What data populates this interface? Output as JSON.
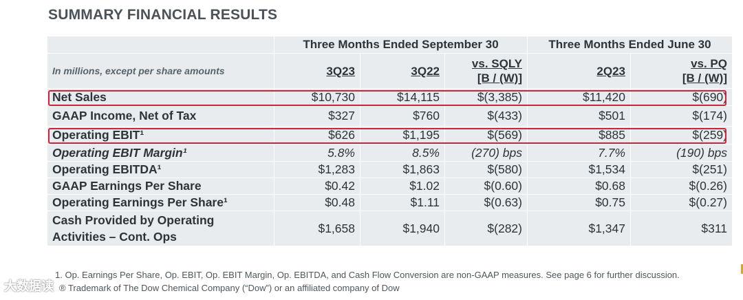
{
  "title": "SUMMARY FINANCIAL RESULTS",
  "groups": {
    "sep": "Three Months Ended September 30",
    "jun": "Three Months Ended June 30"
  },
  "header": {
    "note": "In millions, except per share amounts",
    "c1": "3Q23",
    "c2": "3Q22",
    "c3a": "vs. SQLY",
    "c3b": "[B / (W)]",
    "c4": "2Q23",
    "c5a": "vs. PQ",
    "c5b": "[B / (W)]"
  },
  "rows": [
    {
      "label": "Net Sales",
      "v": [
        "$10,730",
        "$14,115",
        "$(3,385)",
        "$11,420",
        "$(690)"
      ]
    },
    {
      "label": "GAAP Income, Net of Tax",
      "v": [
        "$327",
        "$760",
        "$(433)",
        "$501",
        "$(174)"
      ]
    },
    {
      "label": "Operating EBIT¹",
      "v": [
        "$626",
        "$1,195",
        "$(569)",
        "$885",
        "$(259)"
      ]
    },
    {
      "label": "Operating EBIT Margin¹",
      "v": [
        "5.8%",
        "8.5%",
        "(270) bps",
        "7.7%",
        "(190) bps"
      ]
    },
    {
      "label": "Operating EBITDA¹",
      "v": [
        "$1,283",
        "$1,863",
        "$(580)",
        "$1,534",
        "$(251)"
      ]
    },
    {
      "label": "GAAP Earnings Per Share",
      "v": [
        "$0.42",
        "$1.02",
        "$(0.60)",
        "$0.68",
        "$(0.26)"
      ]
    },
    {
      "label": "Operating Earnings Per Share¹",
      "v": [
        "$0.48",
        "$1.11",
        "$(0.63)",
        "$0.75",
        "$(0.27)"
      ]
    },
    {
      "label": "Cash Provided by Operating Activities – Cont. Ops",
      "v": [
        "$1,658",
        "$1,940",
        "$(282)",
        "$1,347",
        "$311"
      ]
    }
  ],
  "footnotes": {
    "f1": "1.  Op. Earnings Per Share, Op. EBIT, Op. EBIT Margin, Op. EBITDA, and Cash Flow Conversion are non-GAAP measures. See page 6 for further discussion.",
    "f2": "® Trademark of The Dow Chemical Company (“Dow”) or an affiliated company of Dow"
  },
  "watermark": "大数据读",
  "colors": {
    "highlight": "#c9253a",
    "table_bg": "#e9ecee"
  }
}
